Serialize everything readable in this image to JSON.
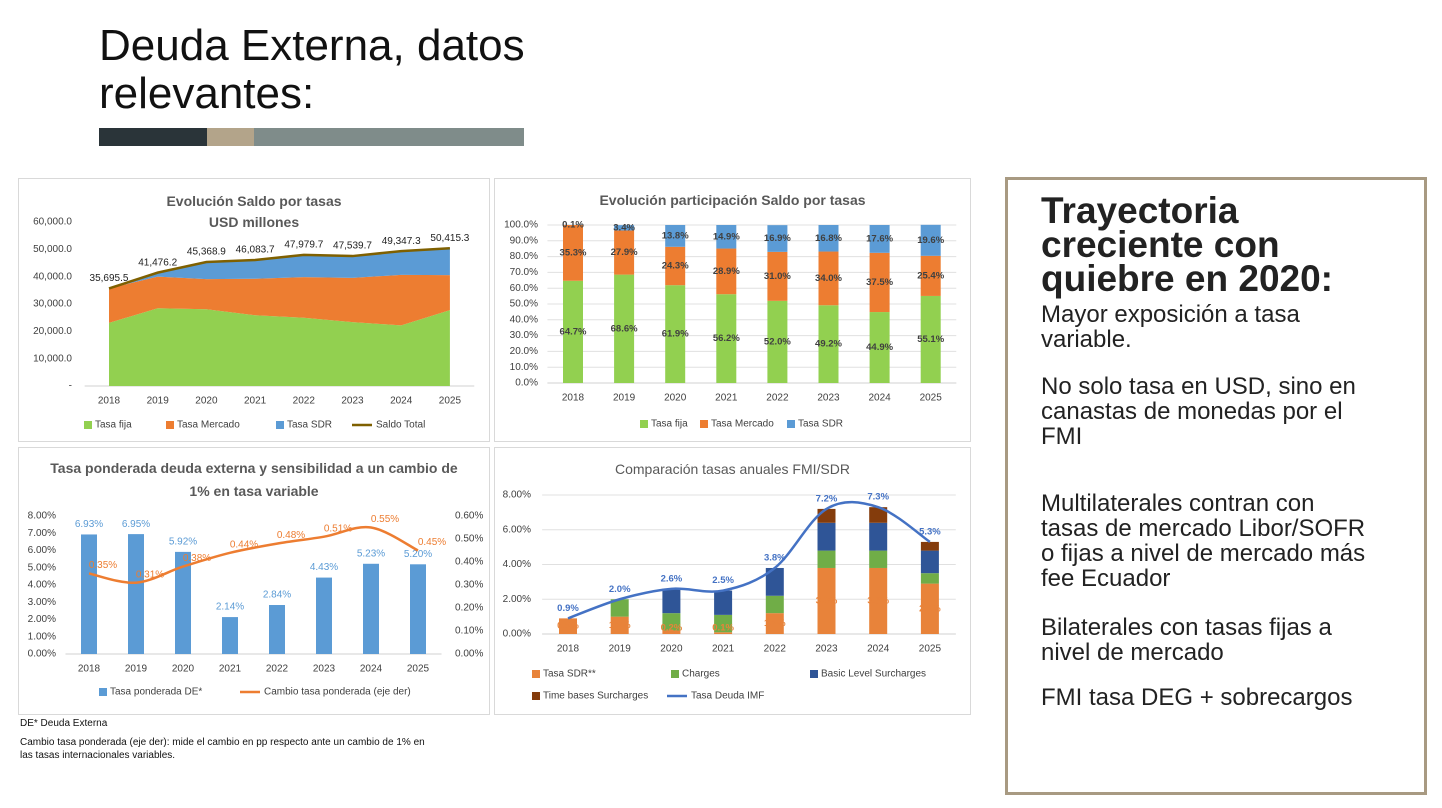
{
  "title": "Deuda Externa, datos relevantes:",
  "chart_data": [
    {
      "type": "area",
      "title": "Evolución Saldo por tasas",
      "subtitle": "USD millones",
      "categories": [
        "2018",
        "2019",
        "2020",
        "2021",
        "2022",
        "2023",
        "2024",
        "2025"
      ],
      "series": [
        {
          "name": "Tasa fija",
          "color": "#92d050",
          "values": [
            23100,
            28450,
            28080,
            25900,
            24950,
            23390,
            22160,
            27780
          ]
        },
        {
          "name": "Tasa Mercado",
          "color": "#ed7d31",
          "values": [
            12600,
            11570,
            11030,
            13320,
            14870,
            16160,
            18500,
            12800
          ]
        },
        {
          "name": "Tasa SDR",
          "color": "#5b9bd5",
          "values": [
            40,
            1410,
            6260,
            6870,
            8110,
            7990,
            8690,
            9880
          ]
        },
        {
          "name": "Saldo Total",
          "color": "#7f6000",
          "type": "line",
          "values": [
            35695.5,
            41476.2,
            45368.9,
            46083.7,
            47979.7,
            47539.7,
            49347.3,
            50415.3
          ],
          "value_labels": [
            "35,695.5",
            "41,476.2",
            "45,368.9",
            "46,083.7",
            "47,979.7",
            "47,539.7",
            "49,347.3",
            "50,415.3"
          ]
        }
      ],
      "ylim": [
        0,
        60000
      ],
      "yticks": [
        {
          "value": 0,
          "label": "-"
        },
        {
          "value": 10000,
          "label": "10,000.0"
        },
        {
          "value": 20000,
          "label": "20,000.0"
        },
        {
          "value": 30000,
          "label": "30,000.0"
        },
        {
          "value": 40000,
          "label": "40,000.0"
        },
        {
          "value": 50000,
          "label": "50,000.0"
        },
        {
          "value": 60000,
          "label": "60,000.0"
        }
      ],
      "grid": false
    },
    {
      "type": "bar",
      "stacked": true,
      "title": "Evolución participación Saldo por tasas",
      "categories": [
        "2018",
        "2019",
        "2020",
        "2021",
        "2022",
        "2023",
        "2024",
        "2025"
      ],
      "series": [
        {
          "name": "Tasa fija",
          "color": "#92d050",
          "values": [
            64.7,
            68.6,
            61.9,
            56.2,
            52.0,
            49.2,
            44.9,
            55.1
          ],
          "value_labels": [
            "64.7%",
            "68.6%",
            "61.9%",
            "56.2%",
            "52.0%",
            "49.2%",
            "44.9%",
            "55.1%"
          ]
        },
        {
          "name": "Tasa Mercado",
          "color": "#ed7d31",
          "values": [
            35.3,
            27.9,
            24.3,
            28.9,
            31.0,
            34.0,
            37.5,
            25.4
          ],
          "value_labels": [
            "35.3%",
            "27.9%",
            "24.3%",
            "28.9%",
            "31.0%",
            "34.0%",
            "37.5%",
            "25.4%"
          ]
        },
        {
          "name": "Tasa SDR",
          "color": "#5b9bd5",
          "values": [
            0.1,
            3.4,
            13.8,
            14.9,
            16.9,
            16.8,
            17.6,
            19.6
          ],
          "value_labels": [
            "0.1%",
            "3.4%",
            "13.8%",
            "14.9%",
            "16.9%",
            "16.8%",
            "17.6%",
            "19.6%"
          ]
        }
      ],
      "ylim": [
        0,
        100
      ],
      "yticks": [
        {
          "value": 0,
          "label": "0.0%"
        },
        {
          "value": 10,
          "label": "10.0%"
        },
        {
          "value": 20,
          "label": "20.0%"
        },
        {
          "value": 30,
          "label": "30.0%"
        },
        {
          "value": 40,
          "label": "40.0%"
        },
        {
          "value": 50,
          "label": "50.0%"
        },
        {
          "value": 60,
          "label": "60.0%"
        },
        {
          "value": 70,
          "label": "70.0%"
        },
        {
          "value": 80,
          "label": "80.0%"
        },
        {
          "value": 90,
          "label": "90.0%"
        },
        {
          "value": 100,
          "label": "100.0%"
        }
      ],
      "grid": true
    },
    {
      "type": "bar",
      "title": "Tasa ponderada deuda externa y sensibilidad a un cambio de 1% en tasa variable",
      "categories": [
        "2018",
        "2019",
        "2020",
        "2021",
        "2022",
        "2023",
        "2024",
        "2025"
      ],
      "series": [
        {
          "name": "Tasa ponderada DE*",
          "color": "#5b9bd5",
          "values": [
            6.93,
            6.95,
            5.92,
            2.14,
            2.84,
            4.43,
            5.23,
            5.2
          ],
          "value_labels": [
            "6.93%",
            "6.95%",
            "5.92%",
            "2.14%",
            "2.84%",
            "4.43%",
            "5.23%",
            "5.20%"
          ]
        },
        {
          "name": "Cambio tasa ponderada (eje der)",
          "color": "#ed7d31",
          "type": "line",
          "axis": "y2",
          "values": [
            0.35,
            0.31,
            0.38,
            0.44,
            0.48,
            0.51,
            0.55,
            0.45
          ],
          "value_labels": [
            "0.35%",
            "0.31%",
            "0.38%",
            "0.44%",
            "0.48%",
            "0.51%",
            "0.55%",
            "0.45%"
          ]
        }
      ],
      "ylim": [
        0,
        8
      ],
      "yticks": [
        {
          "value": 0,
          "label": "0.00%"
        },
        {
          "value": 1,
          "label": "1.00%"
        },
        {
          "value": 2,
          "label": "2.00%"
        },
        {
          "value": 3,
          "label": "3.00%"
        },
        {
          "value": 4,
          "label": "4.00%"
        },
        {
          "value": 5,
          "label": "5.00%"
        },
        {
          "value": 6,
          "label": "6.00%"
        },
        {
          "value": 7,
          "label": "7.00%"
        },
        {
          "value": 8,
          "label": "8.00%"
        }
      ],
      "y2lim": [
        0,
        0.6
      ],
      "y2ticks": [
        {
          "value": 0,
          "label": "0.00%"
        },
        {
          "value": 0.1,
          "label": "0.10%"
        },
        {
          "value": 0.2,
          "label": "0.20%"
        },
        {
          "value": 0.3,
          "label": "0.30%"
        },
        {
          "value": 0.4,
          "label": "0.40%"
        },
        {
          "value": 0.5,
          "label": "0.50%"
        },
        {
          "value": 0.6,
          "label": "0.60%"
        }
      ],
      "grid": false
    },
    {
      "type": "bar",
      "stacked": true,
      "title": "Comparación tasas anuales FMI/SDR",
      "categories": [
        "2018",
        "2019",
        "2020",
        "2021",
        "2022",
        "2023",
        "2024",
        "2025"
      ],
      "series": [
        {
          "name": "Tasa SDR**",
          "color": "#e8833a",
          "values": [
            0.9,
            1.0,
            0.2,
            0.1,
            1.2,
            3.8,
            3.8,
            2.9
          ],
          "value_labels": [
            "0.9%",
            "1.0%",
            "0.2%",
            "0.1%",
            "1.2%",
            "3.8%",
            "3.8%",
            "2.9%"
          ]
        },
        {
          "name": "Charges",
          "color": "#70ad47",
          "values": [
            0,
            1.0,
            1.0,
            1.0,
            1.0,
            1.0,
            1.0,
            0.6
          ]
        },
        {
          "name": "Basic Level Surcharges",
          "color": "#2f5597",
          "values": [
            0,
            0,
            1.4,
            1.4,
            1.6,
            1.6,
            1.6,
            1.3
          ]
        },
        {
          "name": "Time bases Surcharges",
          "color": "#843c0c",
          "values": [
            0,
            0,
            0,
            0,
            0,
            0.8,
            0.9,
            0.5
          ]
        },
        {
          "name": "Tasa Deuda IMF",
          "color": "#4472c4",
          "type": "line",
          "values": [
            0.9,
            2.0,
            2.6,
            2.5,
            3.8,
            7.2,
            7.3,
            5.3
          ],
          "value_labels": [
            "0.9%",
            "2.0%",
            "2.6%",
            "2.5%",
            "3.8%",
            "7.2%",
            "7.3%",
            "5.3%"
          ]
        }
      ],
      "ylim": [
        0,
        8
      ],
      "yticks": [
        {
          "value": 0,
          "label": "0.00%"
        },
        {
          "value": 2,
          "label": "2.00%"
        },
        {
          "value": 4,
          "label": "4.00%"
        },
        {
          "value": 6,
          "label": "6.00%"
        },
        {
          "value": 8,
          "label": "8.00%"
        }
      ],
      "grid": true
    }
  ],
  "notes": [
    "DE* Deuda Externa",
    "Cambio tasa ponderada (eje der): mide el cambio en pp respecto ante un cambio de 1% en las tasas internacionales variables."
  ],
  "panel": {
    "heading": "Trayectoria creciente con quiebre en 2020:",
    "items": [
      "Mayor exposición a tasa variable.",
      "No solo tasa en USD, sino en canastas de monedas por el FMI",
      "Multilaterales contran con tasas de mercado Libor/SOFR o fijas a nivel de mercado más fee Ecuador",
      "Bilaterales con tasas fijas a nivel de mercado",
      "FMI tasa DEG + sobrecargos"
    ]
  }
}
